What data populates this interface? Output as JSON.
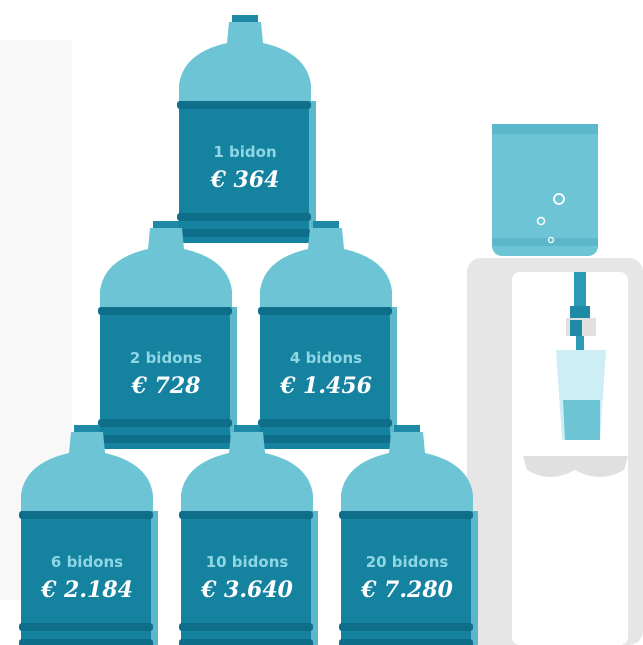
{
  "jugs": [
    {
      "label": "1 bidon",
      "price": "€ 364"
    },
    {
      "label": "2 bidons",
      "price": "€ 728"
    },
    {
      "label": "4 bidons",
      "price": "€ 1.456"
    },
    {
      "label": "6 bidons",
      "price": "€ 2.184"
    },
    {
      "label": "10 bidons",
      "price": "€ 3.640"
    },
    {
      "label": "20 bidons",
      "price": "€ 7.280"
    }
  ]
}
